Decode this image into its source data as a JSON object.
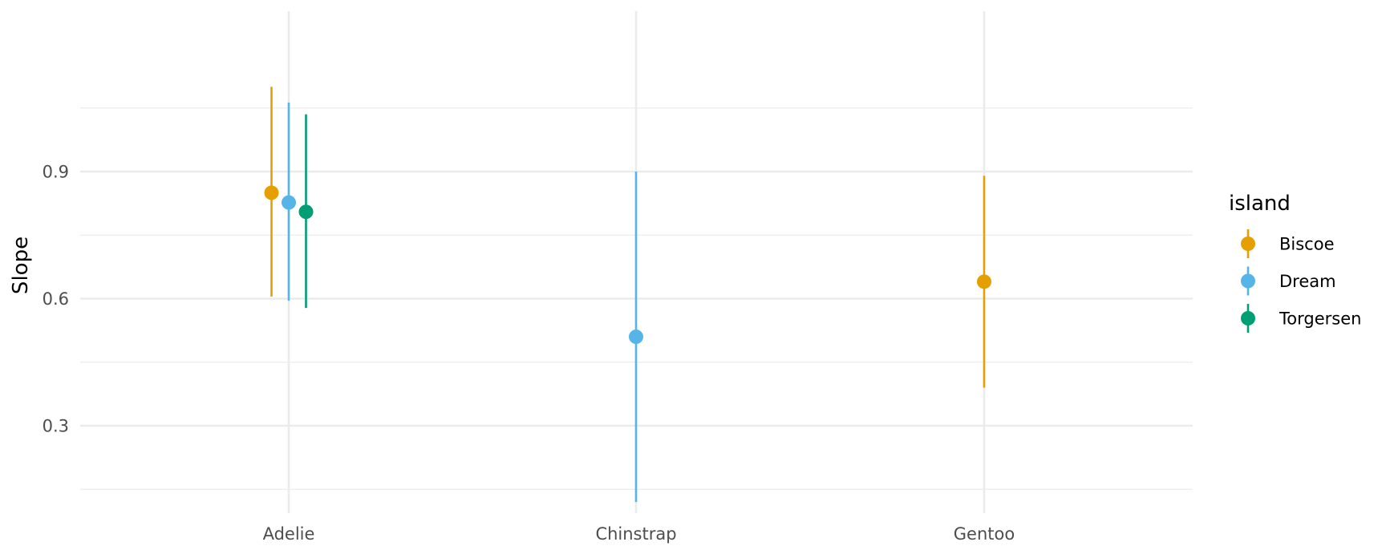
{
  "chart_data": {
    "type": "pointrange",
    "xlabel": "",
    "ylabel": "Slope",
    "categories": [
      "Adelie",
      "Chinstrap",
      "Gentoo"
    ],
    "ylim": [
      0.12,
      1.12
    ],
    "y_ticks": [
      0.3,
      0.6,
      0.9
    ],
    "y_tick_labels": [
      "0.3",
      "0.6",
      "0.9"
    ],
    "grid": true,
    "legend": {
      "title": "island",
      "position": "right",
      "entries": [
        "Biscoe",
        "Dream",
        "Torgersen"
      ]
    },
    "colors": {
      "Biscoe": "#E69F00",
      "Dream": "#56B4E9",
      "Torgersen": "#009E73",
      "grid": "#ebebeb",
      "text": "#4d4d4d"
    },
    "series": [
      {
        "name": "Biscoe",
        "points": [
          {
            "category": "Adelie",
            "estimate": 0.85,
            "low": 0.605,
            "high": 1.1
          },
          {
            "category": "Gentoo",
            "estimate": 0.64,
            "low": 0.39,
            "high": 0.89
          }
        ]
      },
      {
        "name": "Dream",
        "points": [
          {
            "category": "Adelie",
            "estimate": 0.827,
            "low": 0.595,
            "high": 1.063
          },
          {
            "category": "Chinstrap",
            "estimate": 0.51,
            "low": 0.12,
            "high": 0.9
          }
        ]
      },
      {
        "name": "Torgersen",
        "points": [
          {
            "category": "Adelie",
            "estimate": 0.805,
            "low": 0.578,
            "high": 1.035
          }
        ]
      }
    ]
  }
}
